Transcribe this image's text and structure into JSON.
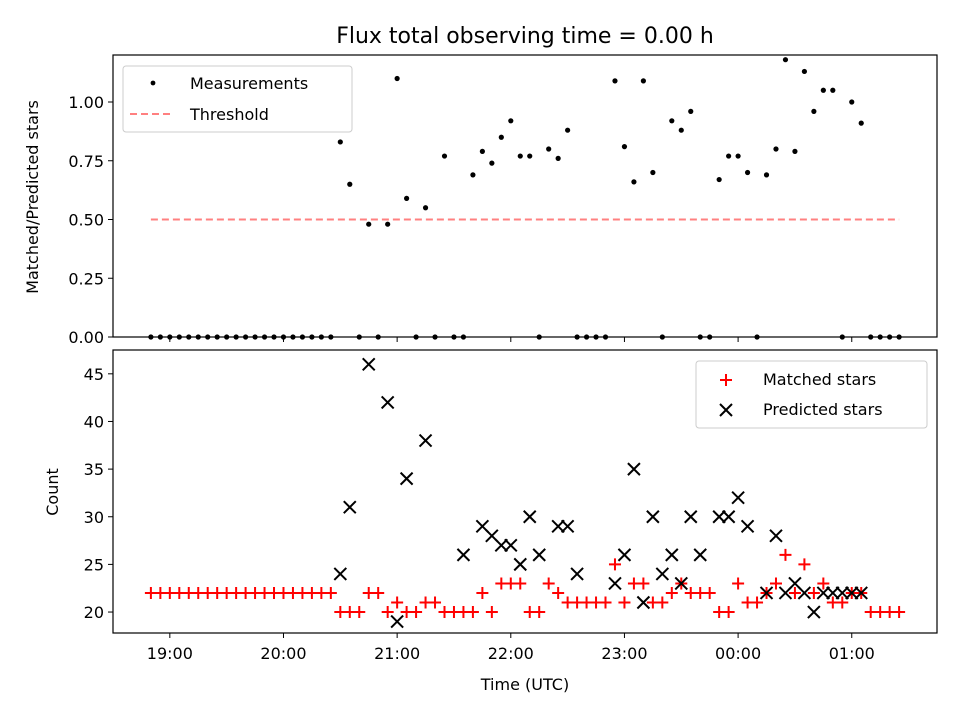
{
  "chart_data": [
    {
      "type": "scatter",
      "title": "Flux total observing time = 0.00 h",
      "xlabel": "",
      "ylabel": "Matched/Predicted stars",
      "xlim": [
        "18:30",
        "01:45"
      ],
      "ylim": [
        0,
        1.2
      ],
      "yticks": [
        "0.00",
        "0.25",
        "0.50",
        "0.75",
        "1.00"
      ],
      "legend_position": "upper-left",
      "threshold": {
        "name": "Threshold",
        "value": 0.5,
        "x_start": "18:50",
        "x_end": "01:25",
        "color": "#ff8080"
      },
      "series": [
        {
          "name": "Measurements",
          "color": "#000000",
          "x": [
            "18:50",
            "18:55",
            "19:00",
            "19:05",
            "19:10",
            "19:15",
            "19:20",
            "19:25",
            "19:30",
            "19:35",
            "19:40",
            "19:45",
            "19:50",
            "19:55",
            "20:00",
            "20:05",
            "20:10",
            "20:15",
            "20:20",
            "20:25",
            "20:30",
            "20:35",
            "20:40",
            "20:45",
            "20:50",
            "20:55",
            "21:00",
            "21:05",
            "21:10",
            "21:15",
            "21:20",
            "21:25",
            "21:30",
            "21:35",
            "21:40",
            "21:45",
            "21:50",
            "21:55",
            "22:00",
            "22:05",
            "22:10",
            "22:15",
            "22:20",
            "22:25",
            "22:30",
            "22:35",
            "22:40",
            "22:45",
            "22:50",
            "22:55",
            "23:00",
            "23:05",
            "23:10",
            "23:15",
            "23:20",
            "23:25",
            "23:30",
            "23:35",
            "23:40",
            "23:45",
            "23:50",
            "23:55",
            "00:00",
            "00:05",
            "00:10",
            "00:15",
            "00:20",
            "00:25",
            "00:30",
            "00:35",
            "00:40",
            "00:45",
            "00:50",
            "00:55",
            "01:00",
            "01:05",
            "01:10",
            "01:15",
            "01:20",
            "01:25"
          ],
          "values": [
            0,
            0,
            0,
            0,
            0,
            0,
            0,
            0,
            0,
            0,
            0,
            0,
            0,
            0,
            0,
            0,
            0,
            0,
            0,
            0,
            0.83,
            0.65,
            0,
            0.48,
            0,
            0.48,
            1.1,
            0.59,
            0,
            0.55,
            0,
            0.77,
            0,
            0,
            0.69,
            0.79,
            0.74,
            0.85,
            0.92,
            0.77,
            0.77,
            0,
            0.8,
            0.76,
            0.88,
            0,
            0,
            0,
            0,
            1.09,
            0.81,
            0.66,
            1.09,
            0.7,
            0,
            0.92,
            0.88,
            0.96,
            0,
            0,
            0.67,
            0.77,
            0.77,
            0.7,
            0,
            0.69,
            0.8,
            1.18,
            0.79,
            1.13,
            0.96,
            1.05,
            1.05,
            0,
            1.0,
            0.91,
            0,
            0,
            0,
            0
          ]
        }
      ]
    },
    {
      "type": "scatter",
      "title": "",
      "xlabel": "Time (UTC)",
      "ylabel": "Count",
      "xlim": [
        "18:30",
        "01:45"
      ],
      "ylim": [
        17.8,
        47.5
      ],
      "xticks": [
        "19:00",
        "20:00",
        "21:00",
        "22:00",
        "23:00",
        "00:00",
        "01:00"
      ],
      "yticks": [
        "20",
        "25",
        "30",
        "35",
        "40",
        "45"
      ],
      "legend_position": "upper-right",
      "series": [
        {
          "name": "Matched stars",
          "color": "#ff0000",
          "marker": "plus",
          "x": [
            "18:50",
            "18:55",
            "19:00",
            "19:05",
            "19:10",
            "19:15",
            "19:20",
            "19:25",
            "19:30",
            "19:35",
            "19:40",
            "19:45",
            "19:50",
            "19:55",
            "20:00",
            "20:05",
            "20:10",
            "20:15",
            "20:20",
            "20:25",
            "20:30",
            "20:35",
            "20:40",
            "20:45",
            "20:50",
            "20:55",
            "21:00",
            "21:05",
            "21:10",
            "21:15",
            "21:20",
            "21:25",
            "21:30",
            "21:35",
            "21:40",
            "21:45",
            "21:50",
            "21:55",
            "22:00",
            "22:05",
            "22:10",
            "22:15",
            "22:20",
            "22:25",
            "22:30",
            "22:35",
            "22:40",
            "22:45",
            "22:50",
            "22:55",
            "23:00",
            "23:05",
            "23:10",
            "23:15",
            "23:20",
            "23:25",
            "23:30",
            "23:35",
            "23:40",
            "23:45",
            "23:50",
            "23:55",
            "00:00",
            "00:05",
            "00:10",
            "00:15",
            "00:20",
            "00:25",
            "00:30",
            "00:35",
            "00:40",
            "00:45",
            "00:50",
            "00:55",
            "01:00",
            "01:05",
            "01:10",
            "01:15",
            "01:20",
            "01:25"
          ],
          "values": [
            22,
            22,
            22,
            22,
            22,
            22,
            22,
            22,
            22,
            22,
            22,
            22,
            22,
            22,
            22,
            22,
            22,
            22,
            22,
            22,
            20,
            20,
            20,
            22,
            22,
            20,
            21,
            20,
            20,
            21,
            21,
            20,
            20,
            20,
            20,
            22,
            20,
            23,
            23,
            23,
            20,
            20,
            23,
            22,
            21,
            21,
            21,
            21,
            21,
            25,
            21,
            23,
            23,
            21,
            21,
            22,
            23,
            22,
            22,
            22,
            20,
            20,
            23,
            21,
            21,
            22,
            23,
            26,
            22,
            25,
            22,
            23,
            21,
            21,
            22,
            22,
            20,
            20,
            20,
            20
          ]
        },
        {
          "name": "Predicted stars",
          "color": "#000000",
          "marker": "x",
          "x": [
            "20:30",
            "20:35",
            "20:45",
            "20:55",
            "21:00",
            "21:05",
            "21:15",
            "21:35",
            "21:45",
            "21:50",
            "21:55",
            "22:00",
            "22:05",
            "22:10",
            "22:15",
            "22:25",
            "22:30",
            "22:35",
            "22:55",
            "23:00",
            "23:05",
            "23:10",
            "23:15",
            "23:20",
            "23:25",
            "23:30",
            "23:35",
            "23:40",
            "23:50",
            "23:55",
            "00:00",
            "00:05",
            "00:15",
            "00:20",
            "00:25",
            "00:30",
            "00:35",
            "00:40",
            "00:45",
            "00:50",
            "00:55",
            "01:00",
            "01:05"
          ],
          "values": [
            24,
            31,
            46,
            42,
            19,
            34,
            38,
            26,
            29,
            28,
            27,
            27,
            25,
            30,
            26,
            29,
            29,
            24,
            23,
            26,
            35,
            21,
            30,
            24,
            26,
            23,
            30,
            26,
            30,
            30,
            32,
            29,
            22,
            28,
            22,
            23,
            22,
            20,
            22,
            22,
            22,
            22,
            22
          ]
        }
      ]
    }
  ]
}
